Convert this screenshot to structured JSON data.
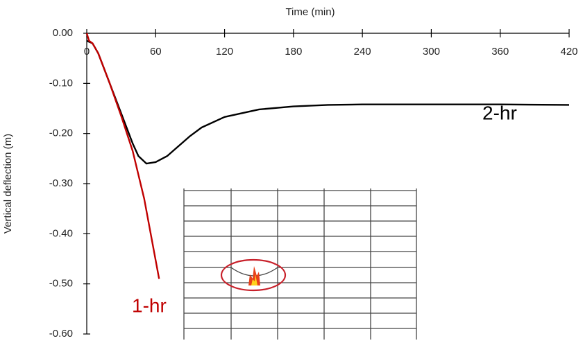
{
  "chart_data": {
    "type": "line",
    "xlabel": "Time (min)",
    "ylabel": "Vertical deflection (m)",
    "xlim": [
      0,
      420
    ],
    "xticks": [
      0,
      60,
      120,
      180,
      240,
      300,
      360,
      420
    ],
    "ylim": [
      -0.6,
      0
    ],
    "yticks": [
      {
        "value": 0,
        "label": "0.00"
      },
      {
        "value": -0.1,
        "label": "-0.10"
      },
      {
        "value": -0.2,
        "label": "-0.20"
      },
      {
        "value": -0.3,
        "label": "-0.30"
      },
      {
        "value": -0.4,
        "label": "-0.40"
      },
      {
        "value": -0.5,
        "label": "-0.50"
      },
      {
        "value": -0.6,
        "label": "-0.60"
      }
    ],
    "grid": false,
    "series": [
      {
        "name": "2-hr",
        "color": "#000000",
        "x": [
          0,
          5,
          10,
          20,
          30,
          40,
          45,
          52,
          60,
          70,
          80,
          90,
          100,
          120,
          150,
          180,
          210,
          240,
          300,
          360,
          420
        ],
        "values": [
          -0.015,
          -0.02,
          -0.04,
          -0.1,
          -0.16,
          -0.22,
          -0.245,
          -0.26,
          -0.257,
          -0.245,
          -0.225,
          -0.205,
          -0.188,
          -0.167,
          -0.152,
          -0.146,
          -0.143,
          -0.142,
          -0.142,
          -0.142,
          -0.143
        ]
      },
      {
        "name": "1-hr",
        "color": "#c00000",
        "x": [
          0,
          2,
          5,
          10,
          20,
          30,
          40,
          50,
          63
        ],
        "values": [
          0,
          -0.015,
          -0.02,
          -0.04,
          -0.1,
          -0.165,
          -0.235,
          -0.33,
          -0.49
        ]
      }
    ]
  }
}
